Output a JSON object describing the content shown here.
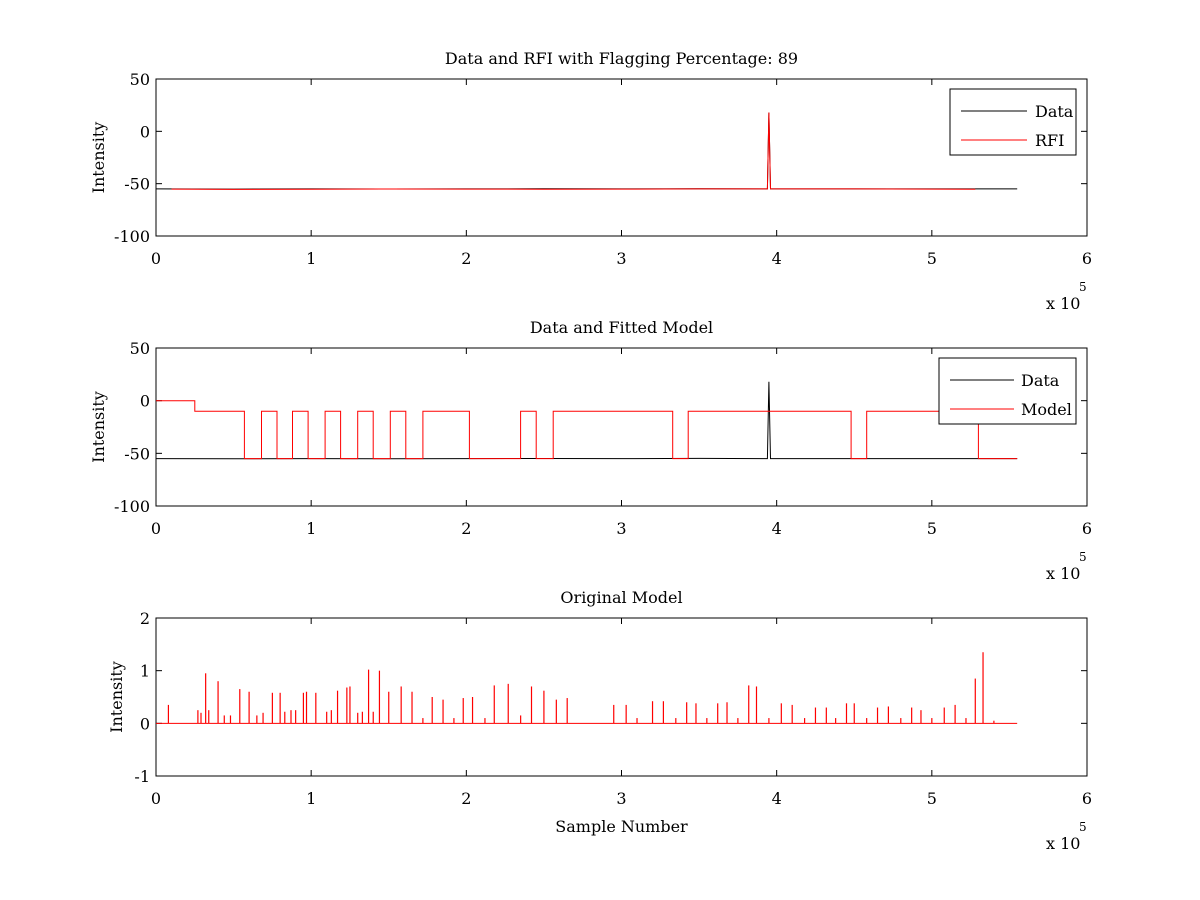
{
  "chart_data": [
    {
      "type": "line",
      "title": "Data and RFI with Flagging Percentage: 89",
      "xlabel": "",
      "ylabel": "Intensity",
      "xlim": [
        0,
        6
      ],
      "ylim": [
        -100,
        50
      ],
      "xticks": [
        "0",
        "1",
        "2",
        "3",
        "4",
        "5",
        "6"
      ],
      "yticks": [
        "-100",
        "-50",
        "0",
        "50"
      ],
      "xscale_exponent": {
        "base": "x 10",
        "power": "5"
      },
      "legend": {
        "placement": "top-right",
        "entries": [
          "Data",
          "RFI"
        ]
      },
      "colors": {
        "Data": "#000000",
        "RFI": "#ff0000"
      },
      "grid": false,
      "series": [
        {
          "name": "Data",
          "x": [
            0,
            0.5,
            1,
            1.5,
            2,
            2.5,
            3,
            3.5,
            3.94,
            3.95,
            3.96,
            4.5,
            5,
            5.55
          ],
          "y": [
            -55,
            -55.2,
            -55,
            -55.1,
            -55,
            -54.9,
            -55,
            -54.8,
            -55,
            18,
            -55,
            -55,
            -55,
            -55
          ]
        },
        {
          "name": "RFI",
          "x": [
            0.1,
            0.5,
            1,
            1.5,
            2,
            2.5,
            3,
            3.5,
            3.94,
            3.95,
            3.96,
            4.5,
            5,
            5.28
          ],
          "y": [
            -55.2,
            -55.5,
            -55.3,
            -55.1,
            -55.2,
            -55.3,
            -55.2,
            -55,
            -55,
            18,
            -55,
            -55,
            -55.2,
            -55.3
          ]
        }
      ]
    },
    {
      "type": "line",
      "title": "Data and Fitted Model",
      "xlabel": "",
      "ylabel": "Intensity",
      "xlim": [
        0,
        6
      ],
      "ylim": [
        -100,
        50
      ],
      "xticks": [
        "0",
        "1",
        "2",
        "3",
        "4",
        "5",
        "6"
      ],
      "yticks": [
        "-100",
        "-50",
        "0",
        "50"
      ],
      "xscale_exponent": {
        "base": "x 10",
        "power": "5"
      },
      "legend": {
        "placement": "top-right",
        "entries": [
          "Data",
          "Model"
        ]
      },
      "colors": {
        "Data": "#000000",
        "Model": "#ff0000"
      },
      "grid": false,
      "series": [
        {
          "name": "Data",
          "x": [
            0,
            0.5,
            1,
            1.5,
            2,
            2.5,
            3,
            3.5,
            3.94,
            3.95,
            3.96,
            4.5,
            5,
            5.55
          ],
          "y": [
            -55,
            -55.2,
            -55,
            -55.1,
            -55,
            -54.9,
            -55,
            -54.8,
            -55,
            18,
            -55,
            -55,
            -55,
            -55
          ]
        },
        {
          "name": "Model",
          "x": [
            0,
            0.25,
            0.25,
            0.57,
            0.57,
            0.68,
            0.68,
            0.78,
            0.78,
            0.88,
            0.88,
            0.98,
            0.98,
            1.09,
            1.09,
            1.19,
            1.19,
            1.3,
            1.3,
            1.4,
            1.4,
            1.51,
            1.51,
            1.61,
            1.61,
            1.72,
            1.72,
            2.02,
            2.02,
            2.35,
            2.35,
            2.45,
            2.45,
            2.56,
            2.56,
            3.33,
            3.33,
            3.43,
            3.43,
            4.48,
            4.48,
            4.58,
            4.58,
            5.3,
            5.3,
            5.55
          ],
          "y": [
            0,
            0,
            -10,
            -10,
            -55,
            -55,
            -10,
            -10,
            -55,
            -55,
            -10,
            -10,
            -55,
            -55,
            -10,
            -10,
            -55,
            -55,
            -10,
            -10,
            -55,
            -55,
            -10,
            -10,
            -55,
            -55,
            -10,
            -10,
            -55,
            -55,
            -10,
            -10,
            -55,
            -55,
            -10,
            -10,
            -55,
            -55,
            -10,
            -10,
            -55,
            -55,
            -10,
            -10,
            -55,
            -55
          ]
        }
      ]
    },
    {
      "type": "line",
      "title": "Original Model",
      "xlabel": "Sample Number",
      "ylabel": "Intensity",
      "xlim": [
        0,
        6
      ],
      "ylim": [
        -1,
        2
      ],
      "xticks": [
        "0",
        "1",
        "2",
        "3",
        "4",
        "5",
        "6"
      ],
      "yticks": [
        "-1",
        "0",
        "1",
        "2"
      ],
      "xscale_exponent": {
        "base": "x 10",
        "power": "5"
      },
      "legend": null,
      "colors": {
        "Model": "#ff0000"
      },
      "grid": false,
      "baseline": {
        "x_start": 0,
        "x_end": 5.55,
        "y": 0
      },
      "spikes": {
        "x": [
          0.08,
          0.27,
          0.29,
          0.32,
          0.34,
          0.4,
          0.44,
          0.48,
          0.54,
          0.6,
          0.65,
          0.69,
          0.75,
          0.8,
          0.83,
          0.87,
          0.9,
          0.95,
          0.97,
          1.03,
          1.1,
          1.13,
          1.17,
          1.23,
          1.25,
          1.3,
          1.33,
          1.37,
          1.4,
          1.44,
          1.5,
          1.58,
          1.65,
          1.72,
          1.78,
          1.85,
          1.92,
          1.98,
          2.04,
          2.12,
          2.18,
          2.27,
          2.35,
          2.42,
          2.5,
          2.58,
          2.65,
          2.95,
          3.03,
          3.1,
          3.2,
          3.27,
          3.35,
          3.42,
          3.48,
          3.55,
          3.62,
          3.68,
          3.75,
          3.82,
          3.87,
          3.95,
          4.03,
          4.1,
          4.18,
          4.25,
          4.32,
          4.38,
          4.45,
          4.5,
          4.58,
          4.65,
          4.72,
          4.8,
          4.87,
          4.93,
          5.0,
          5.08,
          5.15,
          5.22,
          5.28,
          5.33,
          5.4
        ],
        "y": [
          0.35,
          0.25,
          0.2,
          0.95,
          0.25,
          0.8,
          0.15,
          0.15,
          0.65,
          0.6,
          0.15,
          0.2,
          0.58,
          0.58,
          0.22,
          0.25,
          0.25,
          0.58,
          0.6,
          0.58,
          0.22,
          0.25,
          0.62,
          0.68,
          0.7,
          0.2,
          0.22,
          1.02,
          0.22,
          1.0,
          0.6,
          0.7,
          0.6,
          0.1,
          0.5,
          0.45,
          0.1,
          0.48,
          0.5,
          0.1,
          0.72,
          0.75,
          0.15,
          0.7,
          0.62,
          0.45,
          0.48,
          0.35,
          0.35,
          0.1,
          0.42,
          0.42,
          0.1,
          0.4,
          0.38,
          0.1,
          0.38,
          0.4,
          0.1,
          0.72,
          0.7,
          0.1,
          0.38,
          0.35,
          0.1,
          0.3,
          0.3,
          0.1,
          0.38,
          0.38,
          0.1,
          0.3,
          0.32,
          0.1,
          0.3,
          0.25,
          0.1,
          0.3,
          0.35,
          0.1,
          0.85,
          1.35,
          0.05
        ]
      }
    }
  ]
}
